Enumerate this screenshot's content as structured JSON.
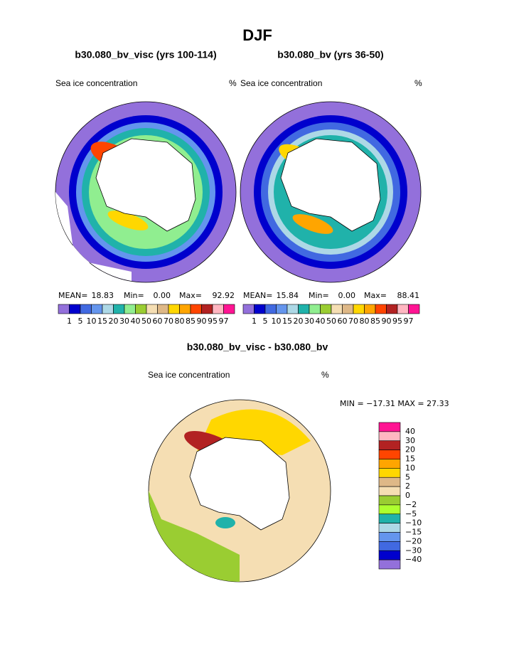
{
  "title": "DJF",
  "panels": [
    {
      "title": "b30.080_bv_visc (yrs 100-114)",
      "left_label": "Sea ice concentration",
      "right_label": "%",
      "stats": {
        "mean_label": "MEAN=",
        "mean": "18.83",
        "min_label": "Min=",
        "min": "0.00",
        "max_label": "Max=",
        "max": "92.92"
      }
    },
    {
      "title": "b30.080_bv (yrs 36-50)",
      "left_label": "Sea ice concentration",
      "right_label": "%",
      "stats": {
        "mean_label": "MEAN=",
        "mean": "15.84",
        "min_label": "Min=",
        "min": "0.00",
        "max_label": "Max=",
        "max": "88.41"
      }
    }
  ],
  "colorbar": {
    "levels": [
      1,
      5,
      10,
      15,
      20,
      30,
      40,
      50,
      60,
      70,
      80,
      85,
      90,
      95,
      97
    ],
    "colors": [
      "#9370db",
      "#0000cd",
      "#4169e1",
      "#6495ed",
      "#add8e6",
      "#20b2aa",
      "#90ee90",
      "#9acd32",
      "#f5deb3",
      "#deb887",
      "#ffd700",
      "#ffa500",
      "#ff4500",
      "#b22222",
      "#ffb6c1",
      "#ff1493"
    ]
  },
  "difference": {
    "title": "b30.080_bv_visc - b30.080_bv",
    "left_label": "Sea ice concentration",
    "right_label": "%",
    "minmax": "MIN = −17.31 MAX =  27.33",
    "colorbar": {
      "levels": [
        40,
        30,
        20,
        15,
        10,
        5,
        2,
        0,
        {
          "value": -2,
          "label": "−2"
        },
        {
          "value": -5,
          "label": "−5"
        },
        {
          "value": -10,
          "label": "−10"
        },
        {
          "value": -15,
          "label": "−15"
        },
        {
          "value": -20,
          "label": "−20"
        },
        {
          "value": -30,
          "label": "−30"
        },
        {
          "value": -40,
          "label": "−40"
        }
      ],
      "colors": [
        "#ff1493",
        "#ffb6c1",
        "#b22222",
        "#ff4500",
        "#ffa500",
        "#ffd700",
        "#deb887",
        "#f5deb3",
        "#9acd32",
        "#adff2f",
        "#20b2aa",
        "#add8e6",
        "#6495ed",
        "#4169e1",
        "#0000cd",
        "#9370db"
      ]
    }
  }
}
